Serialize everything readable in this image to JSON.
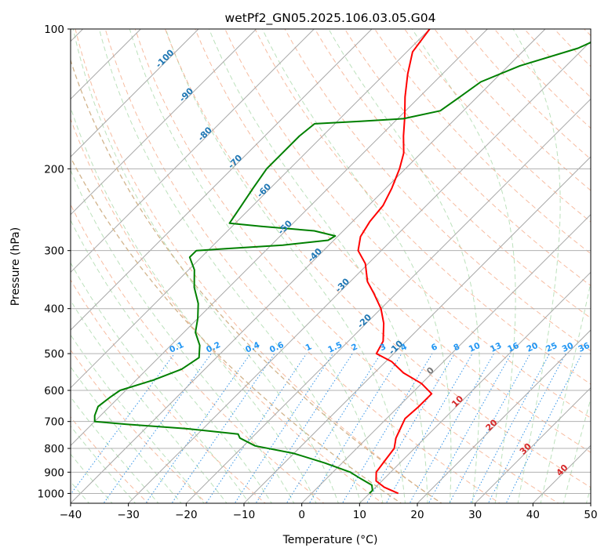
{
  "chart_data": {
    "type": "line",
    "subtype": "skew-t log-p",
    "title": "wetPf2_GN05.2025.106.03.05.G04",
    "xlabel": "Temperature (°C)",
    "ylabel": "Pressure (hPa)",
    "xlim": [
      -40,
      50
    ],
    "ylim": [
      1050,
      100
    ],
    "y_scale": "log",
    "grid": true,
    "x_ticks": [
      -40,
      -30,
      -20,
      -10,
      0,
      10,
      20,
      30,
      40,
      50
    ],
    "y_ticks": [
      100,
      200,
      300,
      400,
      500,
      600,
      700,
      800,
      900,
      1000
    ],
    "isotherm_labels": [
      {
        "label": "-100",
        "T": -100,
        "p": 117
      },
      {
        "label": "-90",
        "T": -90,
        "p": 140
      },
      {
        "label": "-80",
        "T": -80,
        "p": 170
      },
      {
        "label": "-70",
        "T": -70,
        "p": 195
      },
      {
        "label": "-60",
        "T": -60,
        "p": 225
      },
      {
        "label": "-50",
        "T": -50,
        "p": 270
      },
      {
        "label": "-40",
        "T": -40,
        "p": 310
      },
      {
        "label": "-30",
        "T": -30,
        "p": 360
      },
      {
        "label": "-20",
        "T": -20,
        "p": 430
      },
      {
        "label": "-10",
        "T": -10,
        "p": 490
      }
    ],
    "mixing_ratio_labels": [
      "0.1",
      "0.2",
      "0.4",
      "0.6",
      "1",
      "1.5",
      "2",
      "3",
      "4",
      "6",
      "8",
      "10",
      "13",
      "16",
      "20",
      "25",
      "30",
      "36"
    ],
    "moist_adiabat_labels": [
      {
        "label": "0",
        "T": 0,
        "p": 550
      },
      {
        "label": "10",
        "T": 10,
        "p": 640
      },
      {
        "label": "20",
        "T": 20,
        "p": 720
      },
      {
        "label": "30",
        "T": 30,
        "p": 810
      },
      {
        "label": "40",
        "T": 40,
        "p": 900
      }
    ],
    "series": [
      {
        "color": "#ff0000",
        "points": [
          {
            "p": 1000,
            "T": 15
          },
          {
            "p": 970,
            "T": 11.5
          },
          {
            "p": 940,
            "T": 9
          },
          {
            "p": 900,
            "T": 7.5
          },
          {
            "p": 850,
            "T": 7
          },
          {
            "p": 800,
            "T": 6.5
          },
          {
            "p": 760,
            "T": 5
          },
          {
            "p": 720,
            "T": 4
          },
          {
            "p": 690,
            "T": 3.2
          },
          {
            "p": 650,
            "T": 3.5
          },
          {
            "p": 610,
            "T": 3.5
          },
          {
            "p": 580,
            "T": 0
          },
          {
            "p": 550,
            "T": -5
          },
          {
            "p": 520,
            "T": -9
          },
          {
            "p": 500,
            "T": -13
          },
          {
            "p": 470,
            "T": -14
          },
          {
            "p": 430,
            "T": -17
          },
          {
            "p": 400,
            "T": -20
          },
          {
            "p": 370,
            "T": -24
          },
          {
            "p": 350,
            "T": -27
          },
          {
            "p": 320,
            "T": -30.5
          },
          {
            "p": 300,
            "T": -34
          },
          {
            "p": 280,
            "T": -36
          },
          {
            "p": 260,
            "T": -37
          },
          {
            "p": 240,
            "T": -37.5
          },
          {
            "p": 220,
            "T": -39
          },
          {
            "p": 200,
            "T": -41
          },
          {
            "p": 185,
            "T": -43
          },
          {
            "p": 170,
            "T": -46
          },
          {
            "p": 155,
            "T": -49
          },
          {
            "p": 140,
            "T": -52.5
          },
          {
            "p": 125,
            "T": -56
          },
          {
            "p": 112,
            "T": -59
          },
          {
            "p": 100,
            "T": -60
          }
        ]
      },
      {
        "color": "#008000",
        "points": [
          {
            "p": 1000,
            "T": 10
          },
          {
            "p": 985,
            "T": 10
          },
          {
            "p": 960,
            "T": 9
          },
          {
            "p": 930,
            "T": 6
          },
          {
            "p": 900,
            "T": 3
          },
          {
            "p": 860,
            "T": -3
          },
          {
            "p": 820,
            "T": -10
          },
          {
            "p": 790,
            "T": -18
          },
          {
            "p": 760,
            "T": -22
          },
          {
            "p": 745,
            "T": -23
          },
          {
            "p": 725,
            "T": -33
          },
          {
            "p": 710,
            "T": -44
          },
          {
            "p": 700,
            "T": -50
          },
          {
            "p": 680,
            "T": -51
          },
          {
            "p": 650,
            "T": -52
          },
          {
            "p": 620,
            "T": -51.5
          },
          {
            "p": 600,
            "T": -51
          },
          {
            "p": 570,
            "T": -47
          },
          {
            "p": 540,
            "T": -44
          },
          {
            "p": 510,
            "T": -43
          },
          {
            "p": 480,
            "T": -45
          },
          {
            "p": 450,
            "T": -48
          },
          {
            "p": 420,
            "T": -50
          },
          {
            "p": 390,
            "T": -52.5
          },
          {
            "p": 360,
            "T": -56
          },
          {
            "p": 330,
            "T": -59
          },
          {
            "p": 310,
            "T": -62
          },
          {
            "p": 300,
            "T": -62
          },
          {
            "p": 297,
            "T": -57
          },
          {
            "p": 292,
            "T": -48
          },
          {
            "p": 285,
            "T": -41
          },
          {
            "p": 279,
            "T": -40.5
          },
          {
            "p": 272,
            "T": -45
          },
          {
            "p": 266,
            "T": -55
          },
          {
            "p": 262,
            "T": -61
          },
          {
            "p": 240,
            "T": -62
          },
          {
            "p": 220,
            "T": -63
          },
          {
            "p": 200,
            "T": -64
          },
          {
            "p": 185,
            "T": -64
          },
          {
            "p": 170,
            "T": -64
          },
          {
            "p": 160,
            "T": -63.5
          },
          {
            "p": 158,
            "T": -56
          },
          {
            "p": 156,
            "T": -49
          },
          {
            "p": 150,
            "T": -44
          },
          {
            "p": 140,
            "T": -43
          },
          {
            "p": 130,
            "T": -42
          },
          {
            "p": 120,
            "T": -38
          },
          {
            "p": 110,
            "T": -31
          },
          {
            "p": 100,
            "T": -27
          }
        ]
      }
    ]
  }
}
